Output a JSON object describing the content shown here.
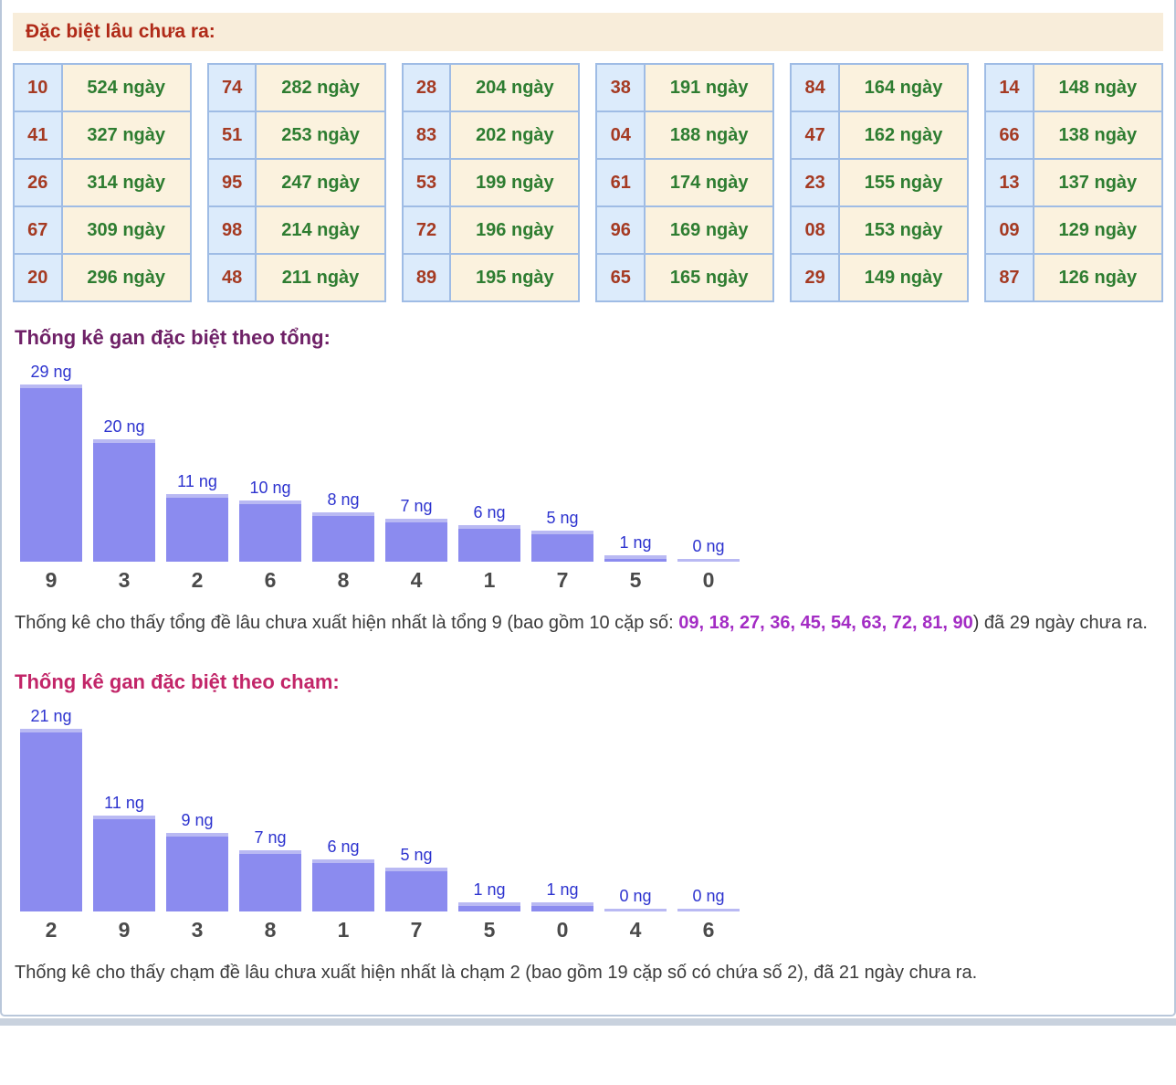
{
  "header": {
    "title": "Đặc biệt lâu chưa ra:"
  },
  "tables": [
    {
      "rows": [
        {
          "num": "10",
          "days": "524 ngày"
        },
        {
          "num": "41",
          "days": "327 ngày"
        },
        {
          "num": "26",
          "days": "314 ngày"
        },
        {
          "num": "67",
          "days": "309 ngày"
        },
        {
          "num": "20",
          "days": "296 ngày"
        }
      ]
    },
    {
      "rows": [
        {
          "num": "74",
          "days": "282 ngày"
        },
        {
          "num": "51",
          "days": "253 ngày"
        },
        {
          "num": "95",
          "days": "247 ngày"
        },
        {
          "num": "98",
          "days": "214 ngày"
        },
        {
          "num": "48",
          "days": "211 ngày"
        }
      ]
    },
    {
      "rows": [
        {
          "num": "28",
          "days": "204 ngày"
        },
        {
          "num": "83",
          "days": "202 ngày"
        },
        {
          "num": "53",
          "days": "199 ngày"
        },
        {
          "num": "72",
          "days": "196 ngày"
        },
        {
          "num": "89",
          "days": "195 ngày"
        }
      ]
    },
    {
      "rows": [
        {
          "num": "38",
          "days": "191 ngày"
        },
        {
          "num": "04",
          "days": "188 ngày"
        },
        {
          "num": "61",
          "days": "174 ngày"
        },
        {
          "num": "96",
          "days": "169 ngày"
        },
        {
          "num": "65",
          "days": "165 ngày"
        }
      ]
    },
    {
      "rows": [
        {
          "num": "84",
          "days": "164 ngày"
        },
        {
          "num": "47",
          "days": "162 ngày"
        },
        {
          "num": "23",
          "days": "155 ngày"
        },
        {
          "num": "08",
          "days": "153 ngày"
        },
        {
          "num": "29",
          "days": "149 ngày"
        }
      ]
    },
    {
      "rows": [
        {
          "num": "14",
          "days": "148 ngày"
        },
        {
          "num": "66",
          "days": "138 ngày"
        },
        {
          "num": "13",
          "days": "137 ngày"
        },
        {
          "num": "09",
          "days": "129 ngày"
        },
        {
          "num": "87",
          "days": "126 ngày"
        }
      ]
    }
  ],
  "chart_data": [
    {
      "type": "bar",
      "id": "sum",
      "title": "Thống kê gan đặc biệt theo tổng:",
      "categories": [
        "9",
        "3",
        "2",
        "6",
        "8",
        "4",
        "1",
        "7",
        "5",
        "0"
      ],
      "values": [
        29,
        20,
        11,
        10,
        8,
        7,
        6,
        5,
        1,
        0
      ],
      "bar_labels": [
        "29 ng",
        "20 ng",
        "11 ng",
        "10 ng",
        "8 ng",
        "7 ng",
        "6 ng",
        "5 ng",
        "1 ng",
        "0 ng"
      ],
      "xlabel": "",
      "ylabel": "",
      "ylim": [
        0,
        29
      ],
      "grid": false,
      "legend": false
    },
    {
      "type": "bar",
      "id": "touch",
      "title": "Thống kê gan đặc biệt theo chạm:",
      "categories": [
        "2",
        "9",
        "3",
        "8",
        "1",
        "7",
        "5",
        "0",
        "4",
        "6"
      ],
      "values": [
        21,
        11,
        9,
        7,
        6,
        5,
        1,
        1,
        0,
        0
      ],
      "bar_labels": [
        "21 ng",
        "11 ng",
        "9 ng",
        "7 ng",
        "6 ng",
        "5 ng",
        "1 ng",
        "1 ng",
        "0 ng",
        "0 ng"
      ],
      "xlabel": "",
      "ylabel": "",
      "ylim": [
        0,
        21
      ],
      "grid": false,
      "legend": false
    }
  ],
  "sum_note": {
    "before": "Thống kê cho thấy tổng đề lâu chưa xuất hiện nhất là tổng 9 (bao gồm 10 cặp số: ",
    "pairs": "09, 18, 27, 36, 45, 54, 63, 72, 81, 90",
    "after": ") đã 29 ngày chưa ra."
  },
  "touch_note": "Thống kê cho thấy chạm đề lâu chưa xuất hiện nhất là chạm 2 (bao gồm 19 cặp số có chứa số 2), đã 21 ngày chưa ra.",
  "colors": {
    "header_text": "#b02a18",
    "header_bg": "#f8edda",
    "table_border": "#9fbce5",
    "table_number_text": "#a53a22",
    "table_number_bg": "#dcebfb",
    "table_days_text": "#2e7d31",
    "table_days_bg": "#fbf2de",
    "sum_title": "#6f2167",
    "touch_title": "#c22568",
    "bar_fill": "#8b8bef",
    "bar_top_edge": "#b9b9f3",
    "bar_value_label": "#2d33cf",
    "x_tick_label": "#4a4a4a",
    "pairs_text": "#a32cc4"
  }
}
